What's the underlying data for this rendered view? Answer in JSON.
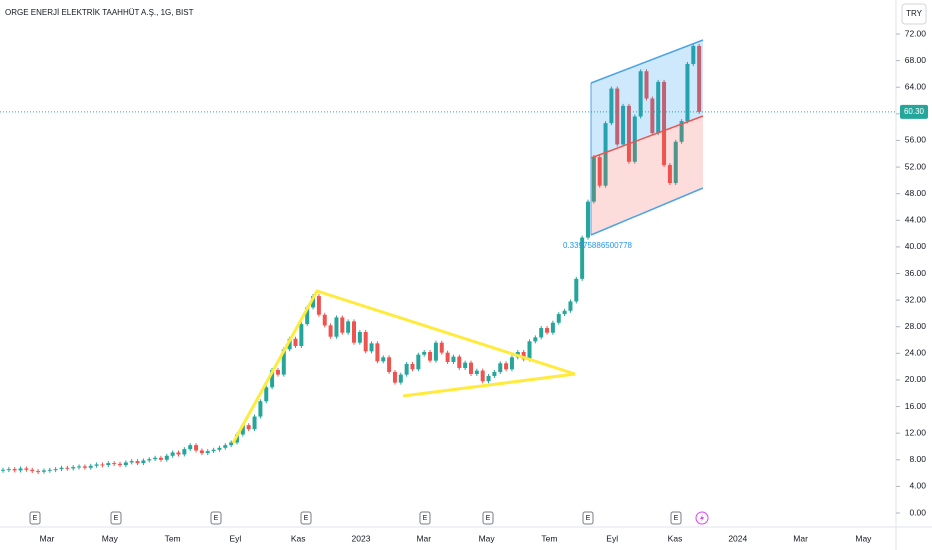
{
  "chart_data": {
    "type": "candlestick",
    "title": "ORGE ENERJİ ELEKTRİK TAAHHÜT A.Ş., 1G, BIST",
    "currency": "TRY",
    "values": [
      6.5,
      6.6,
      6.4,
      6.7,
      6.5,
      6.3,
      6.2,
      6.4,
      6.5,
      6.6,
      6.8,
      6.7,
      6.9,
      7.0,
      6.8,
      7.1,
      7.3,
      7.2,
      7.5,
      7.4,
      7.2,
      7.6,
      7.8,
      7.5,
      7.9,
      8.1,
      8.3,
      8.0,
      8.6,
      9.1,
      8.8,
      9.6,
      10.2,
      9.4,
      9.0,
      9.3,
      9.5,
      9.8,
      10.2,
      10.6,
      11.8,
      13.2,
      12.6,
      14.5,
      16.8,
      18.9,
      21.5,
      20.8,
      24.6,
      26.2,
      25.1,
      28.4,
      30.9,
      32.6,
      29.8,
      28.2,
      26.5,
      29.4,
      27.1,
      28.8,
      25.6,
      27.2,
      24.3,
      25.5,
      22.8,
      23.4,
      21.2,
      19.6,
      20.8,
      22.4,
      21.6,
      23.8,
      24.2,
      22.9,
      25.6,
      24.1,
      22.7,
      23.5,
      21.8,
      22.6,
      20.9,
      21.4,
      19.8,
      20.6,
      21.2,
      22.5,
      21.6,
      23.4,
      24.2,
      23.1,
      25.8,
      26.4,
      27.8,
      27.1,
      28.6,
      29.9,
      30.4,
      31.8,
      35.2,
      41.4,
      46.8,
      53.5,
      49.2,
      58.6,
      63.8,
      55.4,
      61.2,
      52.8,
      59.6,
      66.4,
      62.3,
      57.1,
      64.8,
      52.3,
      49.6,
      55.8,
      58.9,
      67.5,
      70.2,
      60.3
    ],
    "last_label": "60.30",
    "up_color": "#26a69a",
    "down_color": "#ef5350",
    "ylim": [
      0,
      72
    ],
    "yticks": [
      {
        "value": 0,
        "label": "0.00"
      },
      {
        "value": 4,
        "label": "4.00"
      },
      {
        "value": 8,
        "label": "8.00"
      },
      {
        "value": 12,
        "label": "12.00"
      },
      {
        "value": 16,
        "label": "16.00"
      },
      {
        "value": 20,
        "label": "20.00"
      },
      {
        "value": 24,
        "label": "24.00"
      },
      {
        "value": 28,
        "label": "28.00"
      },
      {
        "value": 32,
        "label": "32.00"
      },
      {
        "value": 36,
        "label": "36.00"
      },
      {
        "value": 40,
        "label": "40.00"
      },
      {
        "value": 44,
        "label": "44.00"
      },
      {
        "value": 48,
        "label": "48.00"
      },
      {
        "value": 52,
        "label": "52.00"
      },
      {
        "value": 56,
        "label": "56.00"
      },
      {
        "value": 60,
        "label": "60.00"
      },
      {
        "value": 64,
        "label": "64.00"
      },
      {
        "value": 68,
        "label": "68.00"
      },
      {
        "value": 72,
        "label": "72.00"
      }
    ],
    "x_labels": [
      "Mar",
      "May",
      "Tem",
      "Eyl",
      "Kas",
      "2023",
      "Mar",
      "May",
      "Tem",
      "Eyl",
      "Kas",
      "2024",
      "Mar",
      "May"
    ],
    "annotation": "0.33975886500778",
    "events": [
      "E",
      "E",
      "E",
      "E",
      "E",
      "E",
      "E",
      "E"
    ]
  }
}
